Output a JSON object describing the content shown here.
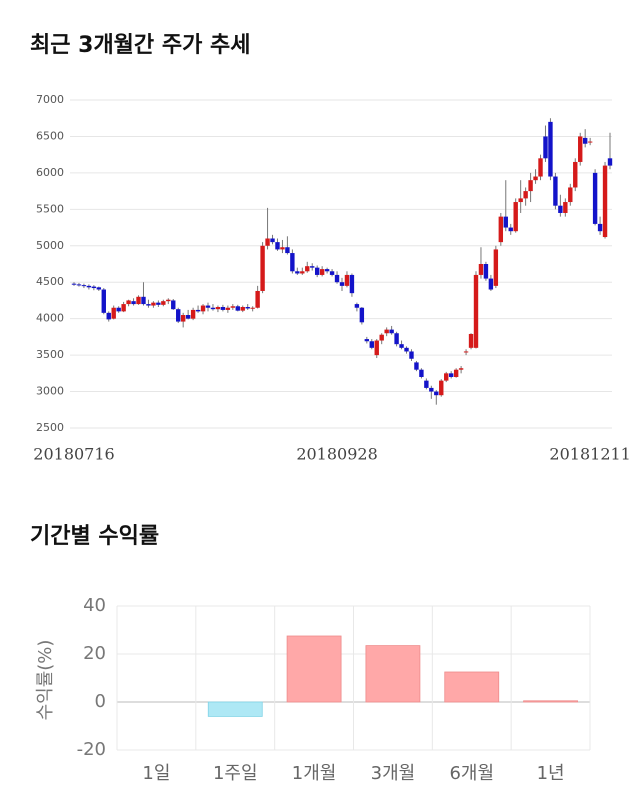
{
  "chart_data": [
    {
      "type": "candlestick",
      "title": "최근 3개월간 주가 추세",
      "categories": [
        "20180716",
        null,
        null,
        null,
        null,
        null,
        null,
        null,
        null,
        null,
        null,
        null,
        null,
        null,
        null,
        null,
        null,
        null,
        null,
        null,
        null,
        null,
        null,
        null,
        null,
        null,
        null,
        null,
        null,
        null,
        null,
        null,
        null,
        null,
        null,
        null,
        null,
        null,
        null,
        null,
        null,
        null,
        null,
        null,
        null,
        null,
        null,
        null,
        null,
        null,
        null,
        null,
        null,
        "20180928",
        null,
        null,
        null,
        null,
        null,
        null,
        null,
        null,
        null,
        null,
        null,
        null,
        null,
        null,
        null,
        null,
        null,
        null,
        null,
        null,
        null,
        null,
        null,
        null,
        null,
        null,
        null,
        null,
        null,
        null,
        null,
        null,
        null,
        null,
        null,
        null,
        null,
        null,
        null,
        null,
        null,
        null,
        null,
        null,
        null,
        null,
        null,
        null,
        null,
        null,
        "20181211",
        null,
        null,
        null,
        null
      ],
      "ohlc": [
        [
          4480,
          4500,
          4450,
          4470
        ],
        [
          4470,
          4490,
          4440,
          4460
        ],
        [
          4460,
          4480,
          4420,
          4450
        ],
        [
          4450,
          4470,
          4400,
          4430
        ],
        [
          4440,
          4460,
          4390,
          4420
        ],
        [
          4430,
          4440,
          4380,
          4400
        ],
        [
          4400,
          4420,
          4060,
          4080
        ],
        [
          4080,
          4100,
          3960,
          3990
        ],
        [
          4000,
          4180,
          3990,
          4150
        ],
        [
          4150,
          4170,
          4080,
          4100
        ],
        [
          4100,
          4230,
          4090,
          4200
        ],
        [
          4200,
          4260,
          4170,
          4250
        ],
        [
          4240,
          4280,
          4180,
          4200
        ],
        [
          4200,
          4320,
          4190,
          4300
        ],
        [
          4300,
          4500,
          4180,
          4200
        ],
        [
          4200,
          4260,
          4150,
          4180
        ],
        [
          4180,
          4240,
          4150,
          4220
        ],
        [
          4220,
          4250,
          4160,
          4190
        ],
        [
          4190,
          4260,
          4170,
          4240
        ],
        [
          4240,
          4280,
          4200,
          4260
        ],
        [
          4250,
          4270,
          4120,
          4130
        ],
        [
          4130,
          4150,
          3940,
          3960
        ],
        [
          3960,
          4080,
          3880,
          4050
        ],
        [
          4050,
          4120,
          3990,
          4000
        ],
        [
          4000,
          4150,
          3980,
          4120
        ],
        [
          4120,
          4180,
          4080,
          4100
        ],
        [
          4100,
          4200,
          4060,
          4180
        ],
        [
          4180,
          4220,
          4100,
          4150
        ],
        [
          4150,
          4200,
          4110,
          4130
        ],
        [
          4130,
          4180,
          4090,
          4160
        ],
        [
          4160,
          4190,
          4100,
          4120
        ],
        [
          4120,
          4180,
          4080,
          4150
        ],
        [
          4150,
          4200,
          4120,
          4170
        ],
        [
          4170,
          4190,
          4100,
          4110
        ],
        [
          4110,
          4180,
          4090,
          4160
        ],
        [
          4160,
          4200,
          4120,
          4140
        ],
        [
          4140,
          4170,
          4100,
          4150
        ],
        [
          4150,
          4450,
          4140,
          4380
        ],
        [
          4380,
          5050,
          4350,
          5000
        ],
        [
          5000,
          5520,
          4950,
          5100
        ],
        [
          5100,
          5150,
          5020,
          5050
        ],
        [
          5050,
          5100,
          4930,
          4950
        ],
        [
          4950,
          5080,
          4900,
          4980
        ],
        [
          4980,
          5130,
          4880,
          4900
        ],
        [
          4900,
          4950,
          4620,
          4650
        ],
        [
          4650,
          4700,
          4600,
          4620
        ],
        [
          4620,
          4700,
          4600,
          4650
        ],
        [
          4650,
          4780,
          4630,
          4720
        ],
        [
          4720,
          4760,
          4660,
          4700
        ],
        [
          4700,
          4730,
          4570,
          4600
        ],
        [
          4600,
          4720,
          4580,
          4680
        ],
        [
          4680,
          4700,
          4620,
          4650
        ],
        [
          4650,
          4680,
          4580,
          4600
        ],
        [
          4600,
          4650,
          4480,
          4500
        ],
        [
          4500,
          4560,
          4380,
          4450
        ],
        [
          4450,
          4650,
          4430,
          4600
        ],
        [
          4600,
          4620,
          4300,
          4350
        ],
        [
          4200,
          4220,
          4100,
          4150
        ],
        [
          4150,
          4160,
          3920,
          3950
        ],
        [
          3720,
          3750,
          3660,
          3690
        ],
        [
          3690,
          3720,
          3580,
          3600
        ],
        [
          3500,
          3720,
          3460,
          3700
        ],
        [
          3700,
          3800,
          3650,
          3780
        ],
        [
          3800,
          3880,
          3760,
          3850
        ],
        [
          3850,
          3900,
          3780,
          3800
        ],
        [
          3800,
          3820,
          3620,
          3650
        ],
        [
          3650,
          3700,
          3580,
          3600
        ],
        [
          3600,
          3620,
          3520,
          3550
        ],
        [
          3550,
          3580,
          3420,
          3450
        ],
        [
          3400,
          3420,
          3280,
          3300
        ],
        [
          3300,
          3320,
          3180,
          3200
        ],
        [
          3150,
          3180,
          3030,
          3050
        ],
        [
          3050,
          3080,
          2900,
          3000
        ],
        [
          3000,
          3020,
          2820,
          2950
        ],
        [
          2950,
          3170,
          2930,
          3150
        ],
        [
          3150,
          3270,
          3130,
          3250
        ],
        [
          3250,
          3280,
          3180,
          3200
        ],
        [
          3200,
          3320,
          3190,
          3300
        ],
        [
          3300,
          3350,
          3250,
          3320
        ],
        [
          3540,
          3580,
          3500,
          3550
        ],
        [
          3600,
          3800,
          3580,
          3790
        ],
        [
          3600,
          4650,
          3590,
          4600
        ],
        [
          4600,
          4980,
          4550,
          4750
        ],
        [
          4750,
          4780,
          4520,
          4550
        ],
        [
          4550,
          4600,
          4380,
          4400
        ],
        [
          4450,
          5000,
          4420,
          4950
        ],
        [
          5050,
          5450,
          5000,
          5400
        ],
        [
          5400,
          5900,
          5200,
          5250
        ],
        [
          5250,
          5300,
          5150,
          5200
        ],
        [
          5200,
          5650,
          5180,
          5600
        ],
        [
          5600,
          5900,
          5450,
          5650
        ],
        [
          5650,
          5800,
          5550,
          5750
        ],
        [
          5750,
          6000,
          5600,
          5900
        ],
        [
          5900,
          6050,
          5850,
          5950
        ],
        [
          5950,
          6250,
          5900,
          6200
        ],
        [
          6500,
          6650,
          6150,
          6200
        ],
        [
          6700,
          6750,
          5900,
          5950
        ],
        [
          5950,
          6000,
          5500,
          5550
        ],
        [
          5550,
          5700,
          5400,
          5450
        ],
        [
          5450,
          5650,
          5400,
          5600
        ],
        [
          5600,
          5850,
          5550,
          5800
        ],
        [
          5800,
          6200,
          5750,
          6150
        ],
        [
          6150,
          6550,
          6100,
          6500
        ],
        [
          6480,
          6600,
          6350,
          6400
        ],
        [
          6420,
          6480,
          6380,
          6430
        ],
        [
          6000,
          6050,
          5280,
          5300
        ],
        [
          5300,
          5400,
          5150,
          5200
        ],
        [
          5120,
          6150,
          5100,
          6100
        ],
        [
          6200,
          6550,
          6050,
          6100
        ]
      ],
      "up_color": "#d51a1a",
      "down_color": "#1313c9",
      "ylim": [
        2500,
        7000
      ],
      "yticks": [
        2500,
        3000,
        3500,
        4000,
        4500,
        5000,
        5500,
        6000,
        6500,
        7000
      ],
      "grid": true
    },
    {
      "type": "bar",
      "title": "기간별 수익률",
      "ylabel": "수익률(%)",
      "categories": [
        "1일",
        "1주일",
        "1개월",
        "3개월",
        "6개월",
        "1년"
      ],
      "values": [
        0,
        -6,
        27.5,
        23.5,
        12.5,
        0.5
      ],
      "positive_color": "#ffa8a8",
      "negative_color": "#aee8f5",
      "ylim": [
        -20,
        40
      ],
      "yticks": [
        -20,
        0,
        20,
        40
      ],
      "grid": true
    }
  ]
}
